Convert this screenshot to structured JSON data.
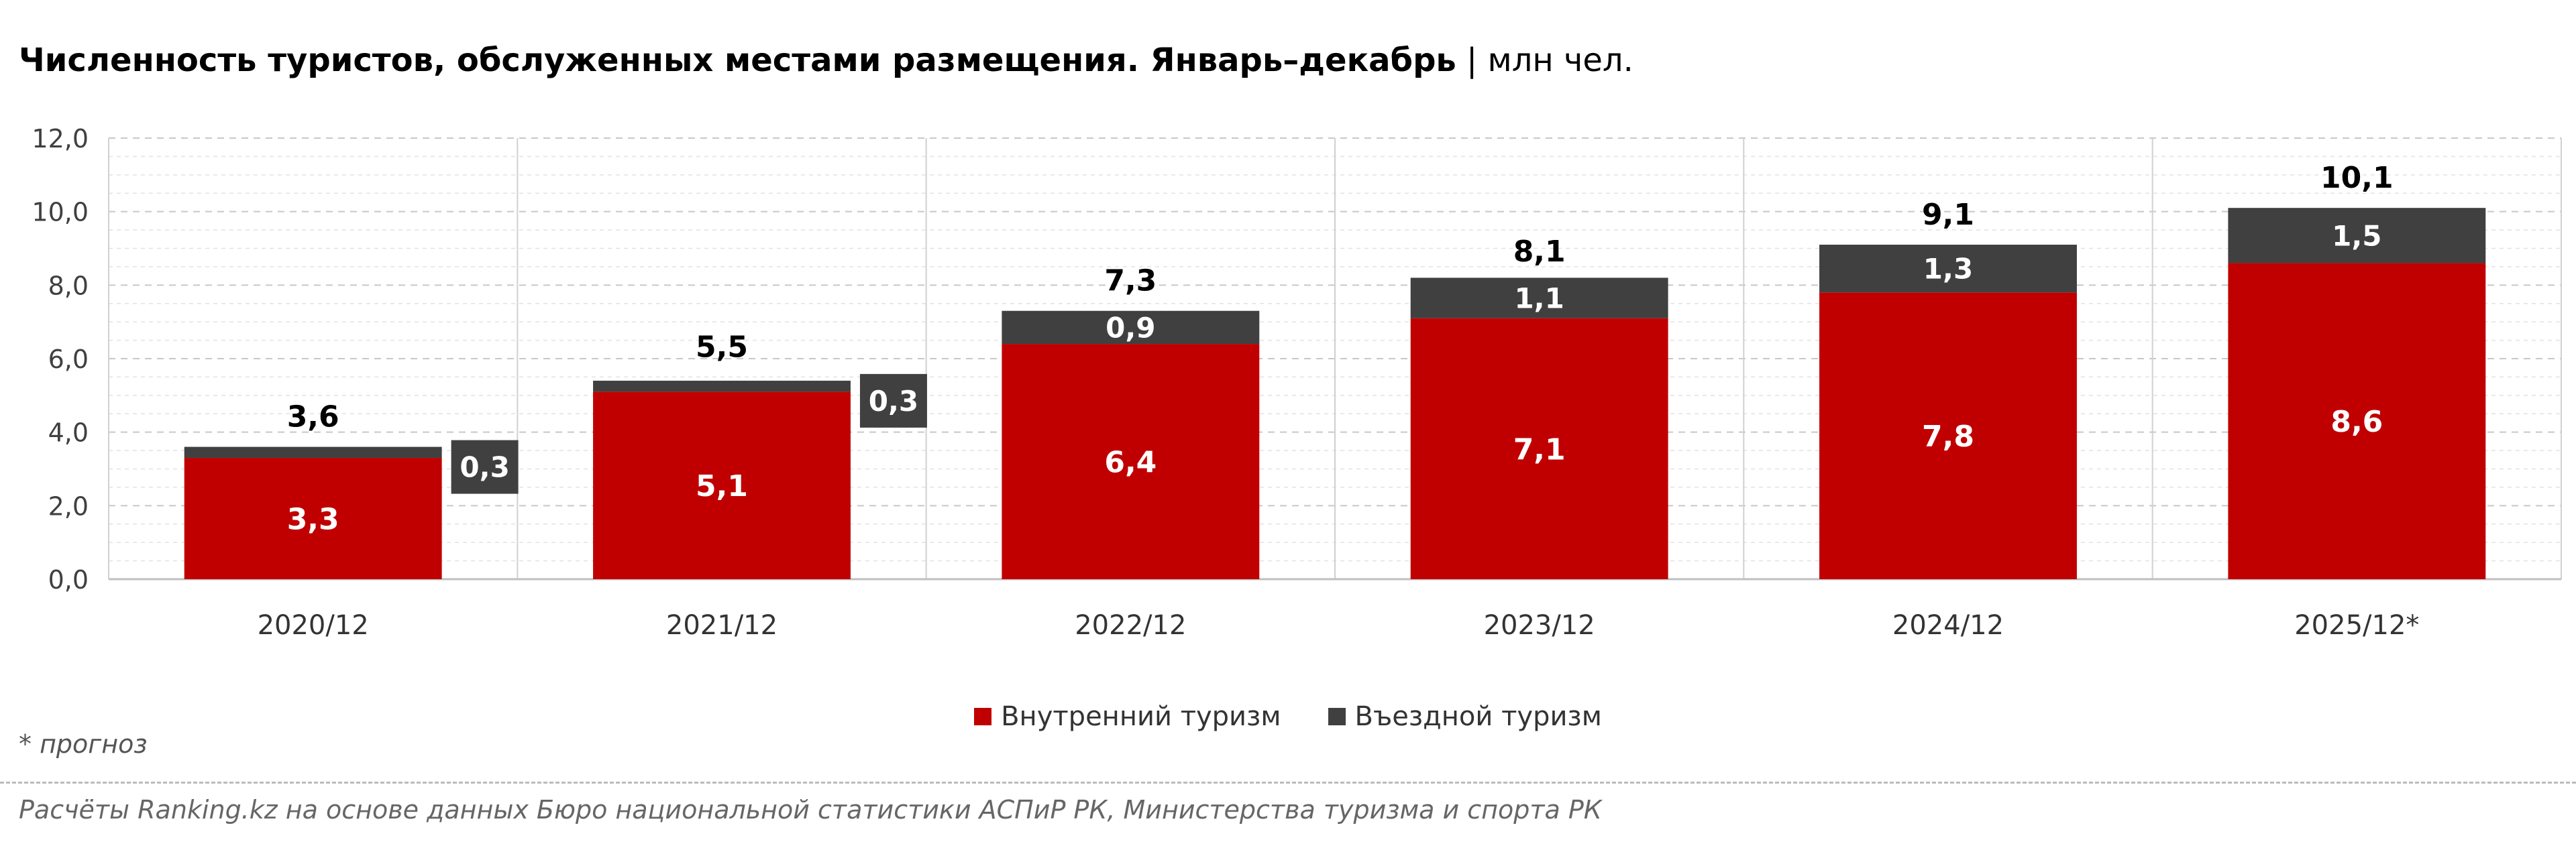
{
  "header": {
    "title_main": "Численность туристов, обслуженных местами размещения. Январь–декабрь",
    "title_sep": "|",
    "title_unit": "млн чел."
  },
  "chart_data": {
    "type": "bar",
    "stacked": true,
    "title": "Численность туристов, обслуженных местами размещения. Январь–декабрь | млн чел.",
    "categories": [
      "2020/12",
      "2021/12",
      "2022/12",
      "2023/12",
      "2024/12",
      "2025/12*"
    ],
    "series": [
      {
        "name": "Внутренний туризм",
        "values": [
          3.3,
          5.1,
          6.4,
          7.1,
          7.8,
          8.6
        ],
        "color": "#C00000"
      },
      {
        "name": "Въездной туризм",
        "values": [
          0.3,
          0.3,
          0.9,
          1.1,
          1.3,
          1.5
        ],
        "color": "#404040"
      }
    ],
    "series_labels": [
      [
        "3,3",
        "5,1",
        "6,4",
        "7,1",
        "7,8",
        "8,6"
      ],
      [
        "0,3",
        "0,3",
        "0,9",
        "1,1",
        "1,3",
        "1,5"
      ]
    ],
    "totals": [
      3.6,
      5.5,
      7.3,
      8.1,
      9.1,
      10.1
    ],
    "total_labels": [
      "3,6",
      "5,5",
      "7,3",
      "8,1",
      "9,1",
      "10,1"
    ],
    "ylim": [
      0,
      12
    ],
    "y_ticks": [
      0,
      2,
      4,
      6,
      8,
      10,
      12
    ],
    "y_tick_labels": [
      "0,0",
      "2,0",
      "4,0",
      "6,0",
      "8,0",
      "10,0",
      "12,0"
    ],
    "grid": true,
    "legend": "bottom"
  },
  "legend": {
    "items": [
      {
        "label": "Внутренний туризм",
        "color": "#C00000"
      },
      {
        "label": "Въездной туризм",
        "color": "#404040"
      }
    ]
  },
  "footnote": "* прогноз",
  "source": "Расчёты Ranking.kz на основе данных Бюро национальной статистики АСПиР РК, Министерства туризма и спорта РК"
}
